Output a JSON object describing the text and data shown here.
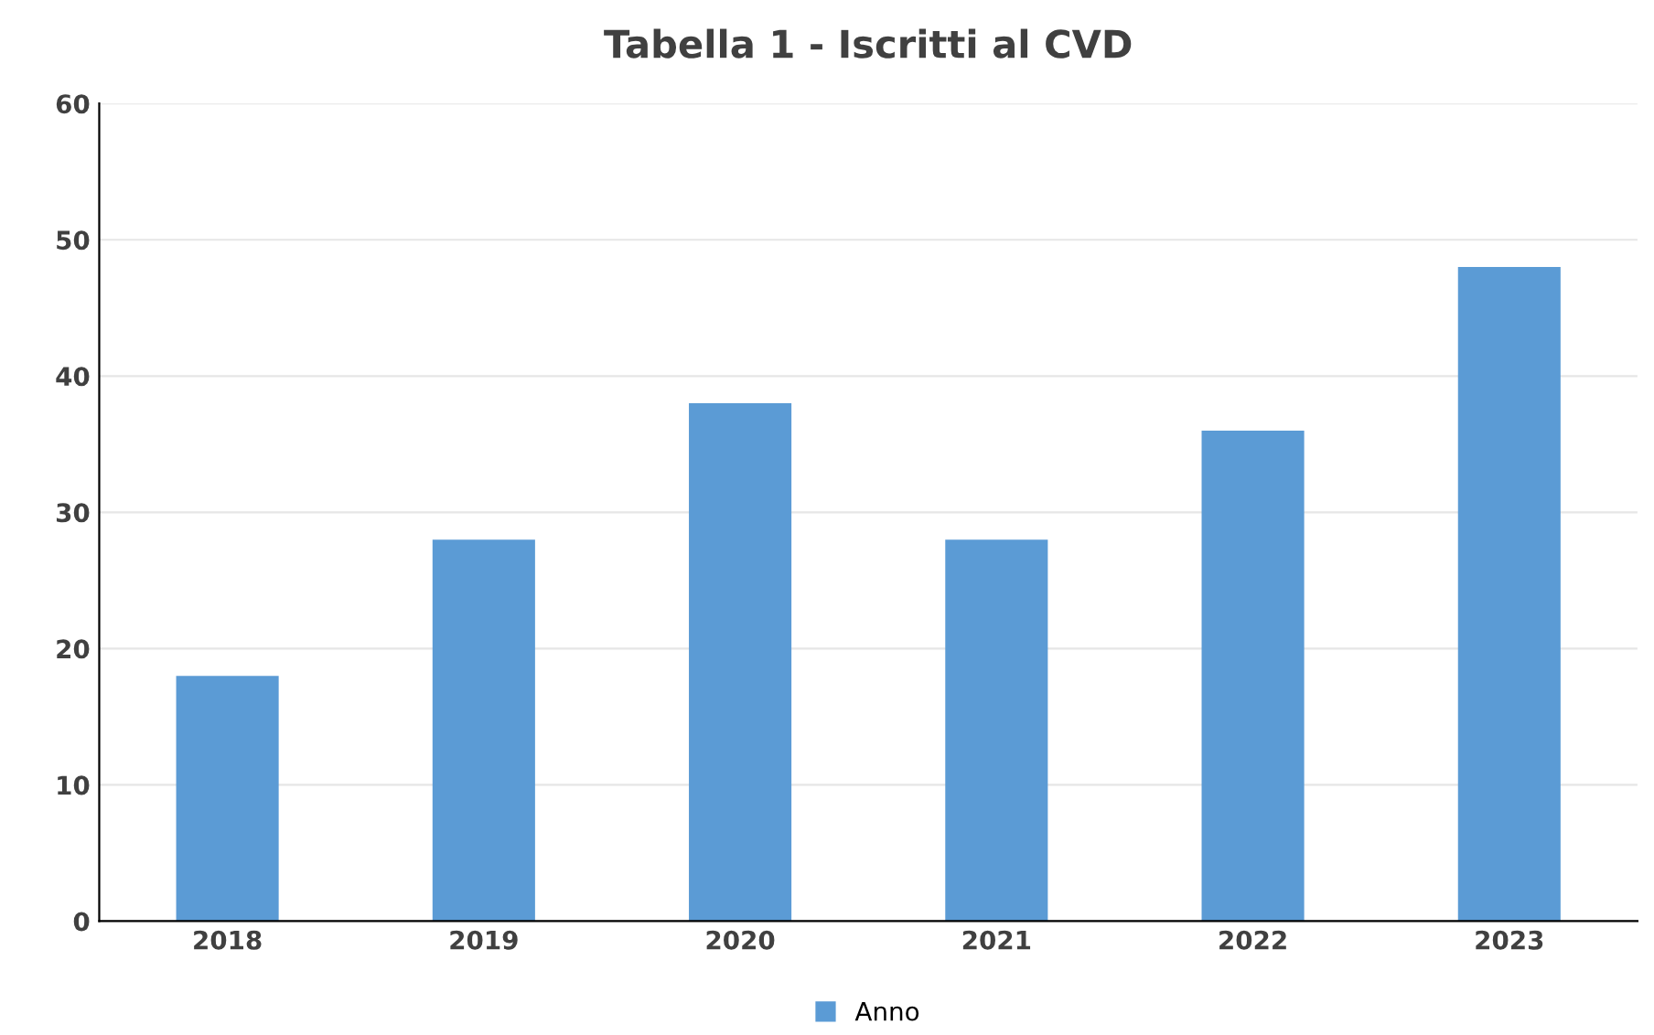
{
  "chart_data": {
    "type": "bar",
    "title": "Tabella 1 - Iscritti al CVD",
    "categories": [
      "2018",
      "2019",
      "2020",
      "2021",
      "2022",
      "2023"
    ],
    "series": [
      {
        "name": "Anno",
        "color": "#5b9bd5",
        "values": [
          18,
          28,
          38,
          28,
          36,
          48
        ]
      }
    ],
    "ylim": [
      0,
      60
    ],
    "yticks": [
      0,
      10,
      20,
      30,
      40,
      50,
      60
    ],
    "grid": "y",
    "legend": "bottom"
  }
}
